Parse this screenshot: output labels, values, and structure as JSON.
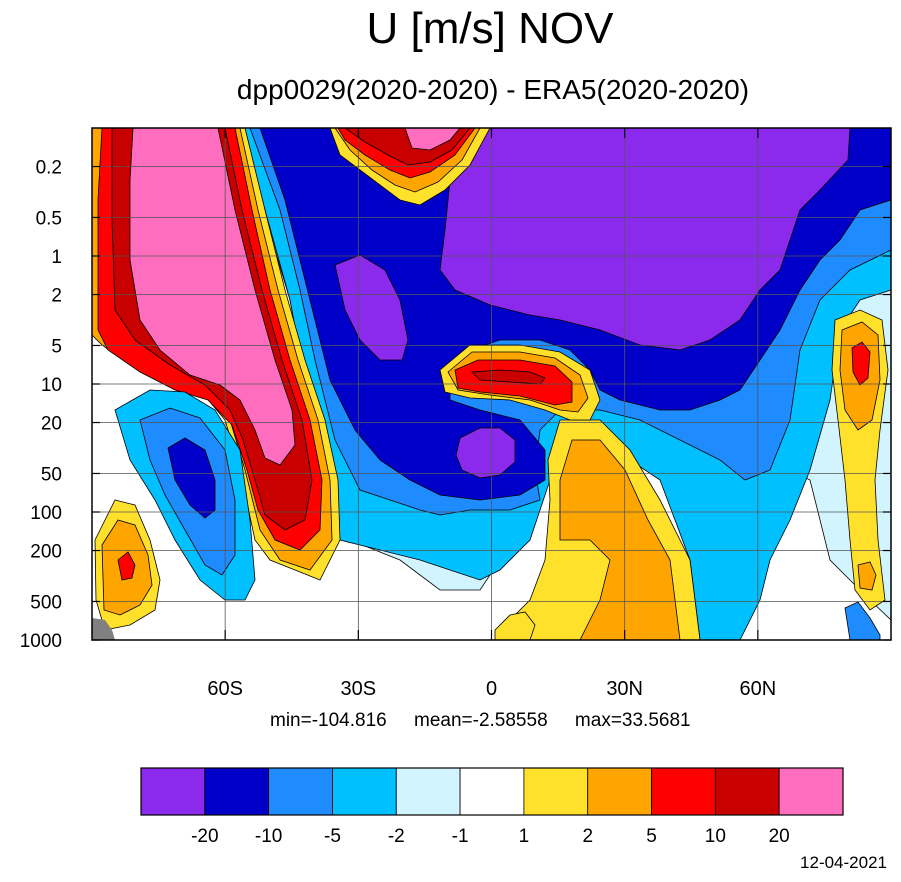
{
  "title": "U [m/s] NOV",
  "subtitle": "dpp0029(2020-2020) - ERA5(2020-2020)",
  "stats": {
    "min": "min=-104.816",
    "mean": "mean=-2.58558",
    "max": "max=33.5681"
  },
  "date": "12-04-2021",
  "colors": {
    "levels": [
      "#8b29ed",
      "#0000c8",
      "#1e8cff",
      "#00c0ff",
      "#d2f4ff",
      "#ffffff",
      "#ffe12c",
      "#ffa500",
      "#ff0000",
      "#c80000",
      "#ff6ebe"
    ],
    "missing": "#808080"
  },
  "chart_data": {
    "type": "heatmap",
    "title": "U [m/s] NOV",
    "subtitle": "dpp0029(2020-2020) - ERA5(2020-2020)",
    "xlabel": "",
    "ylabel": "",
    "x_ticks": [
      "60S",
      "30S",
      "0",
      "30N",
      "60N"
    ],
    "x_tick_values": [
      -60,
      -30,
      0,
      30,
      60
    ],
    "xlim": [
      -90,
      90
    ],
    "y_ticks": [
      "0.2",
      "0.5",
      "1",
      "2",
      "5",
      "10",
      "20",
      "50",
      "100",
      "200",
      "500",
      "1000"
    ],
    "y_tick_values": [
      0.2,
      0.5,
      1,
      2,
      5,
      10,
      20,
      50,
      100,
      200,
      500,
      1000
    ],
    "ylim": [
      1000,
      0.1
    ],
    "y_scale": "log",
    "grid": true,
    "colorbar_labels": [
      "-20",
      "-10",
      "-5",
      "-2",
      "-1",
      "1",
      "2",
      "5",
      "10",
      "20"
    ],
    "colorbar_levels": [
      -20,
      -10,
      -5,
      -2,
      -1,
      1,
      2,
      5,
      10,
      20
    ],
    "colorbar_placement": "bottom",
    "min": -104.816,
    "mean": -2.58558,
    "max": 33.5681
  }
}
